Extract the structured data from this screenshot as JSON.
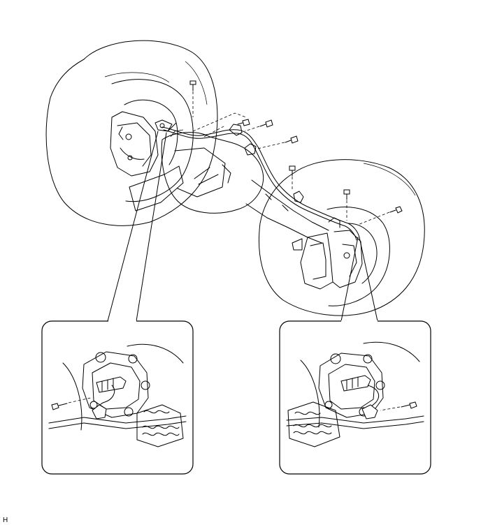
{
  "figure": {
    "code": "H"
  }
}
